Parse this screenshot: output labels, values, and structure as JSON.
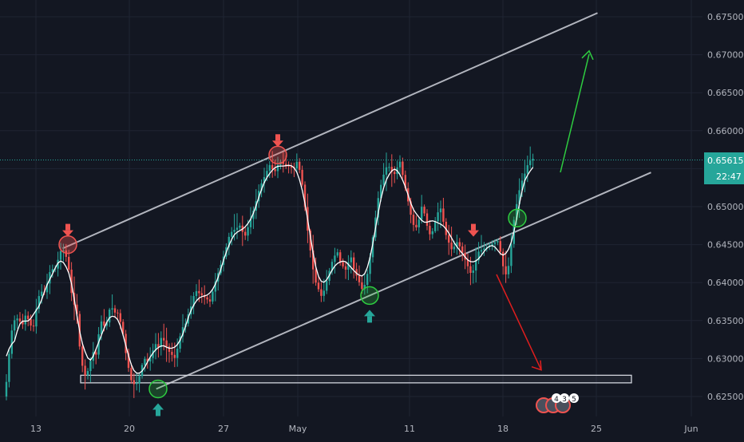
{
  "chart_data": {
    "type": "candlestick",
    "ylim": [
      0.6225,
      0.6775
    ],
    "y_ticks": [
      "0.67500",
      "0.67000",
      "0.66500",
      "0.66000",
      "0.65500",
      "0.65000",
      "0.64500",
      "0.64000",
      "0.63500",
      "0.63000",
      "0.62500"
    ],
    "x_ticks": [
      "13",
      "20",
      "27",
      "May",
      "11",
      "18",
      "25",
      "Jun"
    ],
    "current_price": "0.65615",
    "countdown": "22:47",
    "price_path": [
      [
        0.625,
        0.63,
        0.634,
        0.6355,
        0.635,
        0.6345,
        0.636,
        0.6345,
        0.634,
        0.637,
        0.639,
        0.6385,
        0.64,
        0.642,
        0.6415,
        0.643,
        0.6445,
        0.644,
        0.642,
        0.638
      ],
      [
        0.636,
        0.632,
        0.6295,
        0.628,
        0.6275,
        0.629,
        0.63,
        0.631,
        0.6305,
        0.633,
        0.635,
        0.6345,
        0.634,
        0.6355,
        0.637,
        0.6365,
        0.636,
        0.636,
        0.635,
        0.634
      ],
      [
        0.6315,
        0.629,
        0.627,
        0.6265,
        0.627,
        0.629,
        0.63,
        0.6295,
        0.6305,
        0.632,
        0.6315,
        0.633,
        0.632,
        0.631,
        0.6305,
        0.63,
        0.632,
        0.634,
        0.6345,
        0.636
      ],
      [
        0.6365,
        0.639,
        0.6385,
        0.638,
        0.6375,
        0.64,
        0.642,
        0.644,
        0.6465,
        0.647,
        0.6475,
        0.646,
        0.648,
        0.65,
        0.6525,
        0.654,
        0.6555,
        0.6545,
        0.656,
        0.6555
      ],
      [
        0.655,
        0.656,
        0.6545,
        0.652,
        0.648,
        0.645,
        0.642,
        0.64,
        0.639,
        0.638,
        0.6395,
        0.641,
        0.6425,
        0.6435,
        0.644,
        0.6425,
        0.642,
        0.6415,
        0.644,
        0.642,
        0.641,
        0.64,
        0.639,
        0.64,
        0.642,
        0.645,
        0.648,
        0.651,
        0.653,
        0.6545,
        0.6555,
        0.655,
        0.654,
        0.655,
        0.656,
        0.654,
        0.652,
        0.65,
        0.648,
        0.647,
        0.648,
        0.65,
        0.649,
        0.647,
        0.646,
        0.6475,
        0.649,
        0.65,
        0.648,
        0.646,
        0.645,
        0.644,
        0.6455,
        0.645,
        0.644,
        0.643,
        0.642,
        0.641,
        0.642,
        0.644
      ],
      [
        0.6455,
        0.6445,
        0.643,
        0.6415,
        0.641,
        0.642,
        0.644,
        0.647,
        0.649,
        0.6505,
        0.652,
        0.653,
        0.654,
        0.6545,
        0.6555,
        0.656,
        0.6563
      ]
    ],
    "channel": {
      "upper": [
        [
          "Apr 15",
          0.6445
        ],
        [
          "May 25",
          0.6755
        ]
      ],
      "lower": [
        [
          "Apr 22",
          0.626
        ],
        [
          "May 29",
          0.6545
        ]
      ]
    },
    "support_zone": [
      0.6268,
      0.6278
    ],
    "projections": {
      "bullish_target": 0.6705,
      "bearish_target": 0.6285
    },
    "annotations": [
      {
        "type": "sell-arrow",
        "price": 0.645
      },
      {
        "type": "buy-arrow",
        "price": 0.626
      },
      {
        "type": "sell-arrow",
        "price": 0.6568
      },
      {
        "type": "buy-arrow",
        "price": 0.6383
      },
      {
        "type": "sell-arrow",
        "price": 0.645
      },
      {
        "type": "buy-arrow",
        "price": 0.6485
      }
    ],
    "events": {
      "label_a": "4",
      "label_b": "3",
      "label_c": "5"
    }
  },
  "colors": {
    "background": "#131722",
    "grid": "#1f2433",
    "up": "#26a69a",
    "down": "#ef5350",
    "channel": "#b2b5be",
    "ma": "#ffffff",
    "price_line": "#26a69a",
    "bull_arrow": "#2ecc40",
    "bear_arrow": "#e01e1e",
    "label_text": "#b2b5be"
  }
}
